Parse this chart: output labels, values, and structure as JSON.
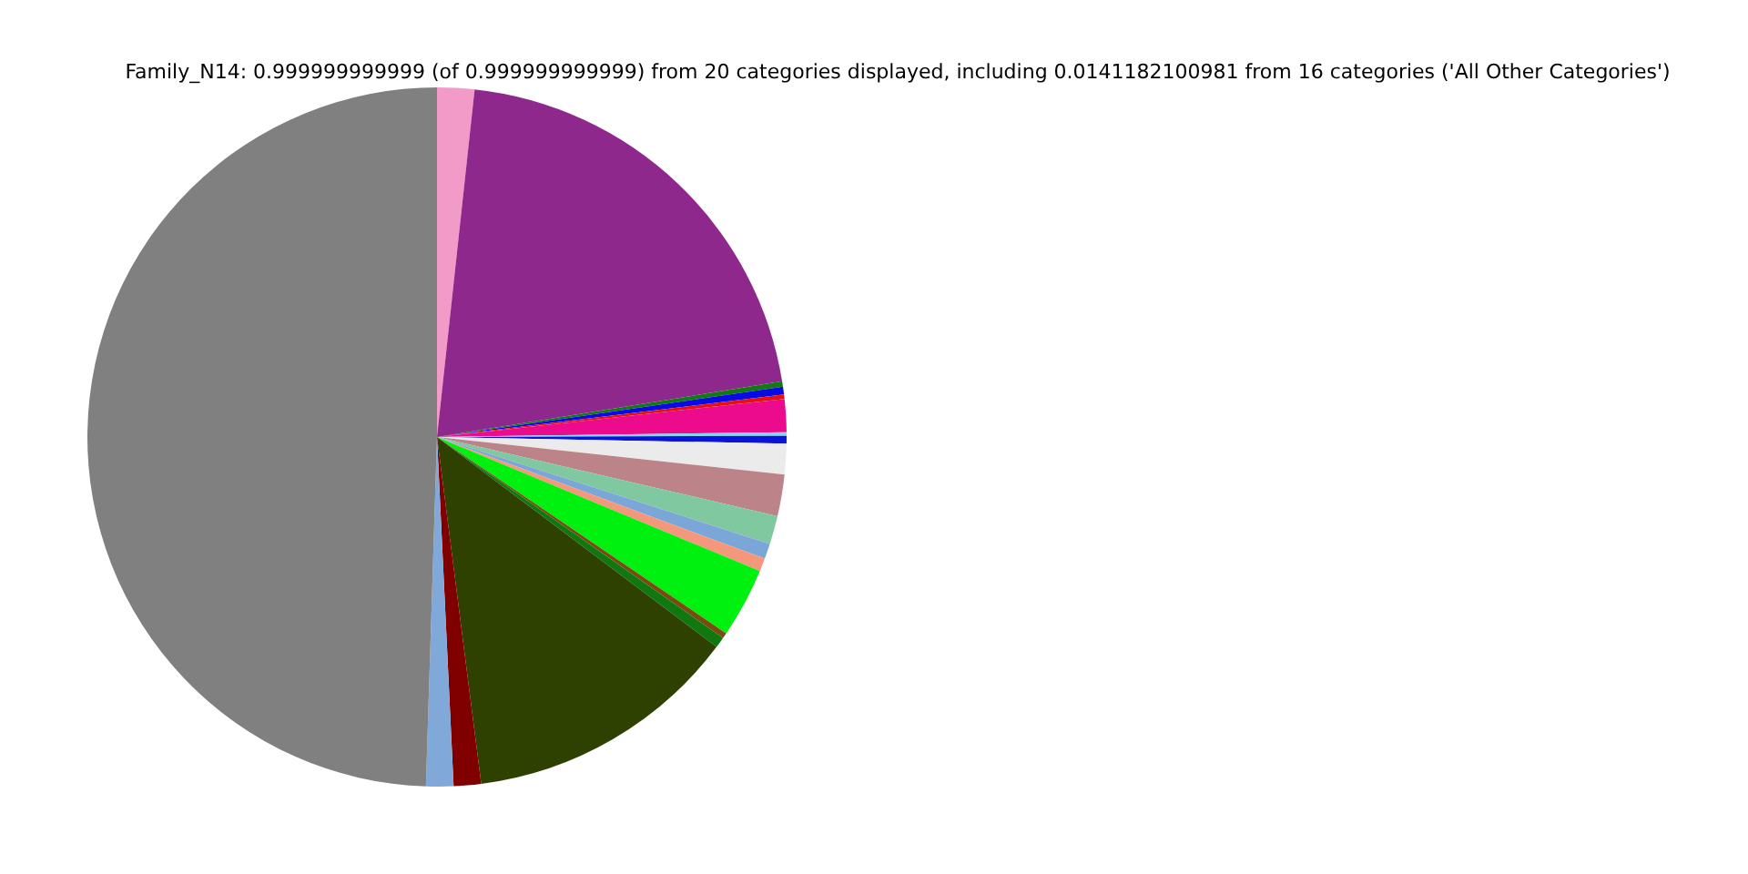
{
  "chart_data": {
    "type": "pie",
    "title": "Family_N14: 0.999999999999 (of 0.999999999999) from 20 categories displayed, including 0.0141182100981 from 16 categories ('All Other Categories')",
    "categories": [
      null,
      null,
      null,
      null,
      null,
      null,
      null,
      null,
      null,
      null,
      null,
      null,
      null,
      null,
      null,
      null,
      null,
      null,
      null,
      null
    ],
    "values": [
      1.7,
      20.53,
      0.25,
      0.35,
      0.2,
      1.5,
      0.17,
      0.35,
      1.4,
      1.9,
      1.3,
      0.7,
      0.6,
      3.2,
      0.25,
      0.5,
      12.6,
      1.25,
      1.25,
      49.0
    ],
    "colors": [
      "#f29ac8",
      "#8f288c",
      "#127a12",
      "#0a0ae6",
      "#e61010",
      "#ec0b8c",
      "#80d8ec",
      "#0a14d8",
      "#ebebeb",
      "#bc8388",
      "#80c8a0",
      "#7ba6d8",
      "#f4977a",
      "#00f010",
      "#7a4a10",
      "#0f780f",
      "#2e4100",
      "#800000",
      "#80a8d8",
      "#808080"
    ]
  }
}
